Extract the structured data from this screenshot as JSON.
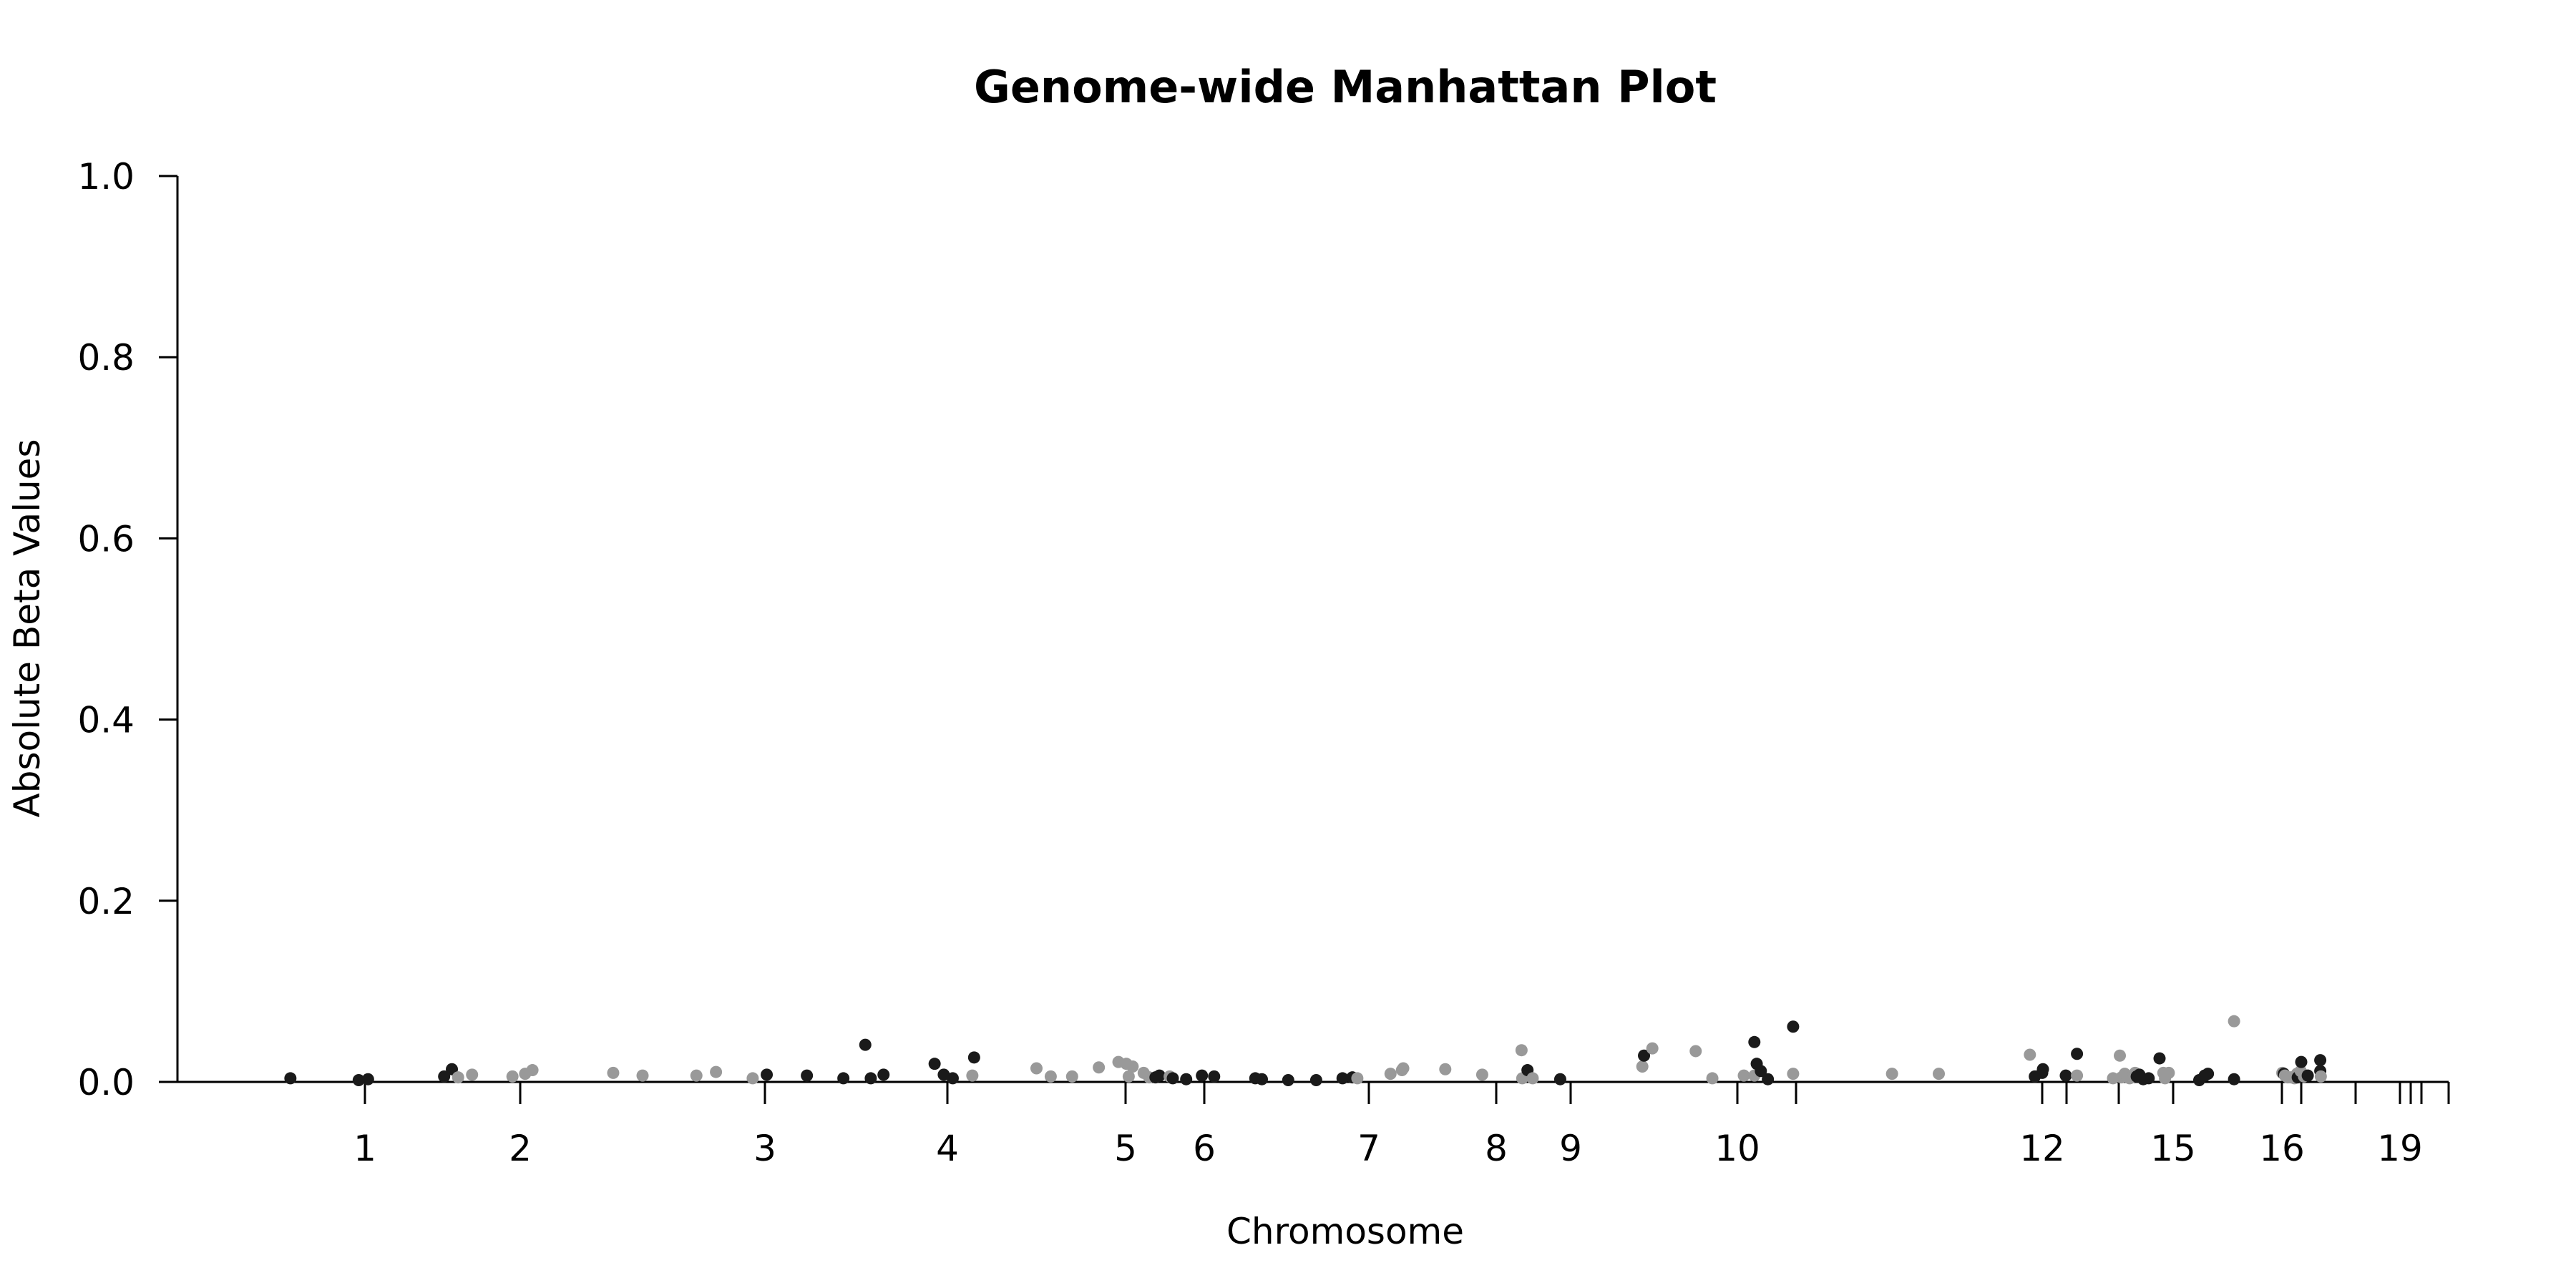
{
  "chart_data": {
    "type": "scatter",
    "title": "Genome-wide Manhattan Plot",
    "xlabel": "Chromosome",
    "ylabel": "Absolute Beta Values",
    "ylim": [
      0,
      1.0
    ],
    "yticks": [
      "0.0",
      "0.2",
      "0.4",
      "0.6",
      "0.8",
      "1.0"
    ],
    "xticks": [
      {
        "label": "1",
        "pos": 1
      },
      {
        "label": "2",
        "pos": 2
      },
      {
        "label": "3",
        "pos": 3
      },
      {
        "label": "4",
        "pos": 4
      },
      {
        "label": "5",
        "pos": 5
      },
      {
        "label": "6",
        "pos": 6
      },
      {
        "label": "7",
        "pos": 7
      },
      {
        "label": "8",
        "pos": 8
      },
      {
        "label": "9",
        "pos": 9
      },
      {
        "label": "10",
        "pos": 10
      },
      {
        "label": "",
        "pos": 11
      },
      {
        "label": "12",
        "pos": 12
      },
      {
        "label": "",
        "pos": 13
      },
      {
        "label": "",
        "pos": 14
      },
      {
        "label": "15",
        "pos": 15
      },
      {
        "label": "16",
        "pos": 16
      },
      {
        "label": "",
        "pos": 17
      },
      {
        "label": "",
        "pos": 18
      },
      {
        "label": "19",
        "pos": 19
      },
      {
        "label": "",
        "pos": 20
      },
      {
        "label": "",
        "pos": 21
      },
      {
        "label": "",
        "pos": 22
      }
    ],
    "grid": false,
    "legend": "none",
    "colors": {
      "odd": "#1a1a1a",
      "even": "#999999"
    },
    "points": [
      {
        "x": 0.52,
        "y": 0.004,
        "c": "odd"
      },
      {
        "x": 0.96,
        "y": 0.002,
        "c": "odd"
      },
      {
        "x": 1.02,
        "y": 0.003,
        "c": "odd"
      },
      {
        "x": 1.51,
        "y": 0.006,
        "c": "odd"
      },
      {
        "x": 1.56,
        "y": 0.014,
        "c": "odd"
      },
      {
        "x": 1.6,
        "y": 0.005,
        "c": "even"
      },
      {
        "x": 1.69,
        "y": 0.008,
        "c": "even"
      },
      {
        "x": 1.95,
        "y": 0.006,
        "c": "even"
      },
      {
        "x": 2.02,
        "y": 0.009,
        "c": "even"
      },
      {
        "x": 2.05,
        "y": 0.013,
        "c": "even"
      },
      {
        "x": 2.38,
        "y": 0.01,
        "c": "even"
      },
      {
        "x": 2.5,
        "y": 0.007,
        "c": "even"
      },
      {
        "x": 2.72,
        "y": 0.007,
        "c": "even"
      },
      {
        "x": 2.8,
        "y": 0.011,
        "c": "even"
      },
      {
        "x": 2.95,
        "y": 0.004,
        "c": "even"
      },
      {
        "x": 3.01,
        "y": 0.008,
        "c": "odd"
      },
      {
        "x": 3.23,
        "y": 0.007,
        "c": "odd"
      },
      {
        "x": 3.43,
        "y": 0.004,
        "c": "odd"
      },
      {
        "x": 3.55,
        "y": 0.041,
        "c": "odd"
      },
      {
        "x": 3.58,
        "y": 0.004,
        "c": "odd"
      },
      {
        "x": 3.65,
        "y": 0.008,
        "c": "odd"
      },
      {
        "x": 3.93,
        "y": 0.02,
        "c": "odd"
      },
      {
        "x": 3.98,
        "y": 0.008,
        "c": "odd"
      },
      {
        "x": 4.03,
        "y": 0.004,
        "c": "odd"
      },
      {
        "x": 4.14,
        "y": 0.007,
        "c": "even"
      },
      {
        "x": 4.15,
        "y": 0.027,
        "c": "odd"
      },
      {
        "x": 4.5,
        "y": 0.015,
        "c": "even"
      },
      {
        "x": 4.58,
        "y": 0.006,
        "c": "even"
      },
      {
        "x": 4.7,
        "y": 0.006,
        "c": "even"
      },
      {
        "x": 4.85,
        "y": 0.016,
        "c": "even"
      },
      {
        "x": 4.96,
        "y": 0.022,
        "c": "even"
      },
      {
        "x": 5.01,
        "y": 0.02,
        "c": "even"
      },
      {
        "x": 5.04,
        "y": 0.006,
        "c": "even"
      },
      {
        "x": 5.09,
        "y": 0.017,
        "c": "even"
      },
      {
        "x": 5.23,
        "y": 0.01,
        "c": "even"
      },
      {
        "x": 5.3,
        "y": 0.005,
        "c": "even"
      },
      {
        "x": 5.38,
        "y": 0.005,
        "c": "odd"
      },
      {
        "x": 5.43,
        "y": 0.007,
        "c": "odd"
      },
      {
        "x": 5.56,
        "y": 0.006,
        "c": "even"
      },
      {
        "x": 5.6,
        "y": 0.004,
        "c": "odd"
      },
      {
        "x": 5.77,
        "y": 0.003,
        "c": "odd"
      },
      {
        "x": 5.97,
        "y": 0.007,
        "c": "odd"
      },
      {
        "x": 6.06,
        "y": 0.006,
        "c": "odd"
      },
      {
        "x": 6.31,
        "y": 0.004,
        "c": "odd"
      },
      {
        "x": 6.35,
        "y": 0.003,
        "c": "odd"
      },
      {
        "x": 6.51,
        "y": 0.002,
        "c": "odd"
      },
      {
        "x": 6.68,
        "y": 0.002,
        "c": "odd"
      },
      {
        "x": 6.84,
        "y": 0.004,
        "c": "odd"
      },
      {
        "x": 6.9,
        "y": 0.005,
        "c": "odd"
      },
      {
        "x": 6.93,
        "y": 0.004,
        "c": "even"
      },
      {
        "x": 7.17,
        "y": 0.009,
        "c": "even"
      },
      {
        "x": 7.26,
        "y": 0.013,
        "c": "even"
      },
      {
        "x": 7.27,
        "y": 0.015,
        "c": "even"
      },
      {
        "x": 7.6,
        "y": 0.014,
        "c": "even"
      },
      {
        "x": 7.89,
        "y": 0.008,
        "c": "even"
      },
      {
        "x": 8.34,
        "y": 0.035,
        "c": "even"
      },
      {
        "x": 8.35,
        "y": 0.004,
        "c": "even"
      },
      {
        "x": 8.42,
        "y": 0.013,
        "c": "odd"
      },
      {
        "x": 8.49,
        "y": 0.004,
        "c": "even"
      },
      {
        "x": 8.86,
        "y": 0.003,
        "c": "odd"
      },
      {
        "x": 9.43,
        "y": 0.017,
        "c": "even"
      },
      {
        "x": 9.44,
        "y": 0.029,
        "c": "odd"
      },
      {
        "x": 9.49,
        "y": 0.037,
        "c": "even"
      },
      {
        "x": 9.75,
        "y": 0.034,
        "c": "even"
      },
      {
        "x": 9.85,
        "y": 0.004,
        "c": "even"
      },
      {
        "x": 10.11,
        "y": 0.007,
        "c": "even"
      },
      {
        "x": 10.29,
        "y": 0.007,
        "c": "even"
      },
      {
        "x": 10.29,
        "y": 0.044,
        "c": "odd"
      },
      {
        "x": 10.33,
        "y": 0.02,
        "c": "odd"
      },
      {
        "x": 10.4,
        "y": 0.012,
        "c": "odd"
      },
      {
        "x": 10.52,
        "y": 0.003,
        "c": "odd"
      },
      {
        "x": 10.95,
        "y": 0.061,
        "c": "odd"
      },
      {
        "x": 10.95,
        "y": 0.009,
        "c": "even"
      },
      {
        "x": 11.39,
        "y": 0.009,
        "c": "even"
      },
      {
        "x": 11.58,
        "y": 0.009,
        "c": "even"
      },
      {
        "x": 11.95,
        "y": 0.03,
        "c": "even"
      },
      {
        "x": 11.97,
        "y": 0.006,
        "c": "odd"
      },
      {
        "x": 12.0,
        "y": 0.01,
        "c": "odd"
      },
      {
        "x": 12.03,
        "y": 0.014,
        "c": "odd"
      },
      {
        "x": 12.97,
        "y": 0.007,
        "c": "odd"
      },
      {
        "x": 13.2,
        "y": 0.031,
        "c": "odd"
      },
      {
        "x": 13.2,
        "y": 0.007,
        "c": "even"
      },
      {
        "x": 13.89,
        "y": 0.004,
        "c": "even"
      },
      {
        "x": 14.02,
        "y": 0.029,
        "c": "even"
      },
      {
        "x": 14.05,
        "y": 0.005,
        "c": "even"
      },
      {
        "x": 14.11,
        "y": 0.009,
        "c": "even"
      },
      {
        "x": 14.2,
        "y": 0.004,
        "c": "even"
      },
      {
        "x": 14.27,
        "y": 0.006,
        "c": "even"
      },
      {
        "x": 14.3,
        "y": 0.01,
        "c": "even"
      },
      {
        "x": 14.33,
        "y": 0.006,
        "c": "odd"
      },
      {
        "x": 14.38,
        "y": 0.008,
        "c": "odd"
      },
      {
        "x": 14.45,
        "y": 0.003,
        "c": "odd"
      },
      {
        "x": 14.55,
        "y": 0.004,
        "c": "odd"
      },
      {
        "x": 14.75,
        "y": 0.026,
        "c": "odd"
      },
      {
        "x": 14.82,
        "y": 0.01,
        "c": "even"
      },
      {
        "x": 14.85,
        "y": 0.004,
        "c": "even"
      },
      {
        "x": 14.92,
        "y": 0.01,
        "c": "even"
      },
      {
        "x": 15.24,
        "y": 0.002,
        "c": "odd"
      },
      {
        "x": 15.29,
        "y": 0.007,
        "c": "odd"
      },
      {
        "x": 15.32,
        "y": 0.009,
        "c": "odd"
      },
      {
        "x": 15.56,
        "y": 0.003,
        "c": "odd"
      },
      {
        "x": 15.56,
        "y": 0.067,
        "c": "even"
      },
      {
        "x": 16.02,
        "y": 0.01,
        "c": "even"
      },
      {
        "x": 16.1,
        "y": 0.009,
        "c": "odd"
      },
      {
        "x": 16.16,
        "y": 0.007,
        "c": "even"
      },
      {
        "x": 16.3,
        "y": 0.005,
        "c": "even"
      },
      {
        "x": 16.45,
        "y": 0.005,
        "c": "even"
      },
      {
        "x": 16.65,
        "y": 0.004,
        "c": "even"
      },
      {
        "x": 16.78,
        "y": 0.009,
        "c": "even"
      },
      {
        "x": 16.82,
        "y": 0.005,
        "c": "odd"
      },
      {
        "x": 16.97,
        "y": 0.012,
        "c": "even"
      },
      {
        "x": 17.0,
        "y": 0.022,
        "c": "odd"
      },
      {
        "x": 17.05,
        "y": 0.006,
        "c": "even"
      },
      {
        "x": 17.12,
        "y": 0.007,
        "c": "odd"
      },
      {
        "x": 17.35,
        "y": 0.012,
        "c": "odd"
      },
      {
        "x": 17.35,
        "y": 0.024,
        "c": "odd"
      },
      {
        "x": 17.36,
        "y": 0.006,
        "c": "even"
      }
    ]
  }
}
